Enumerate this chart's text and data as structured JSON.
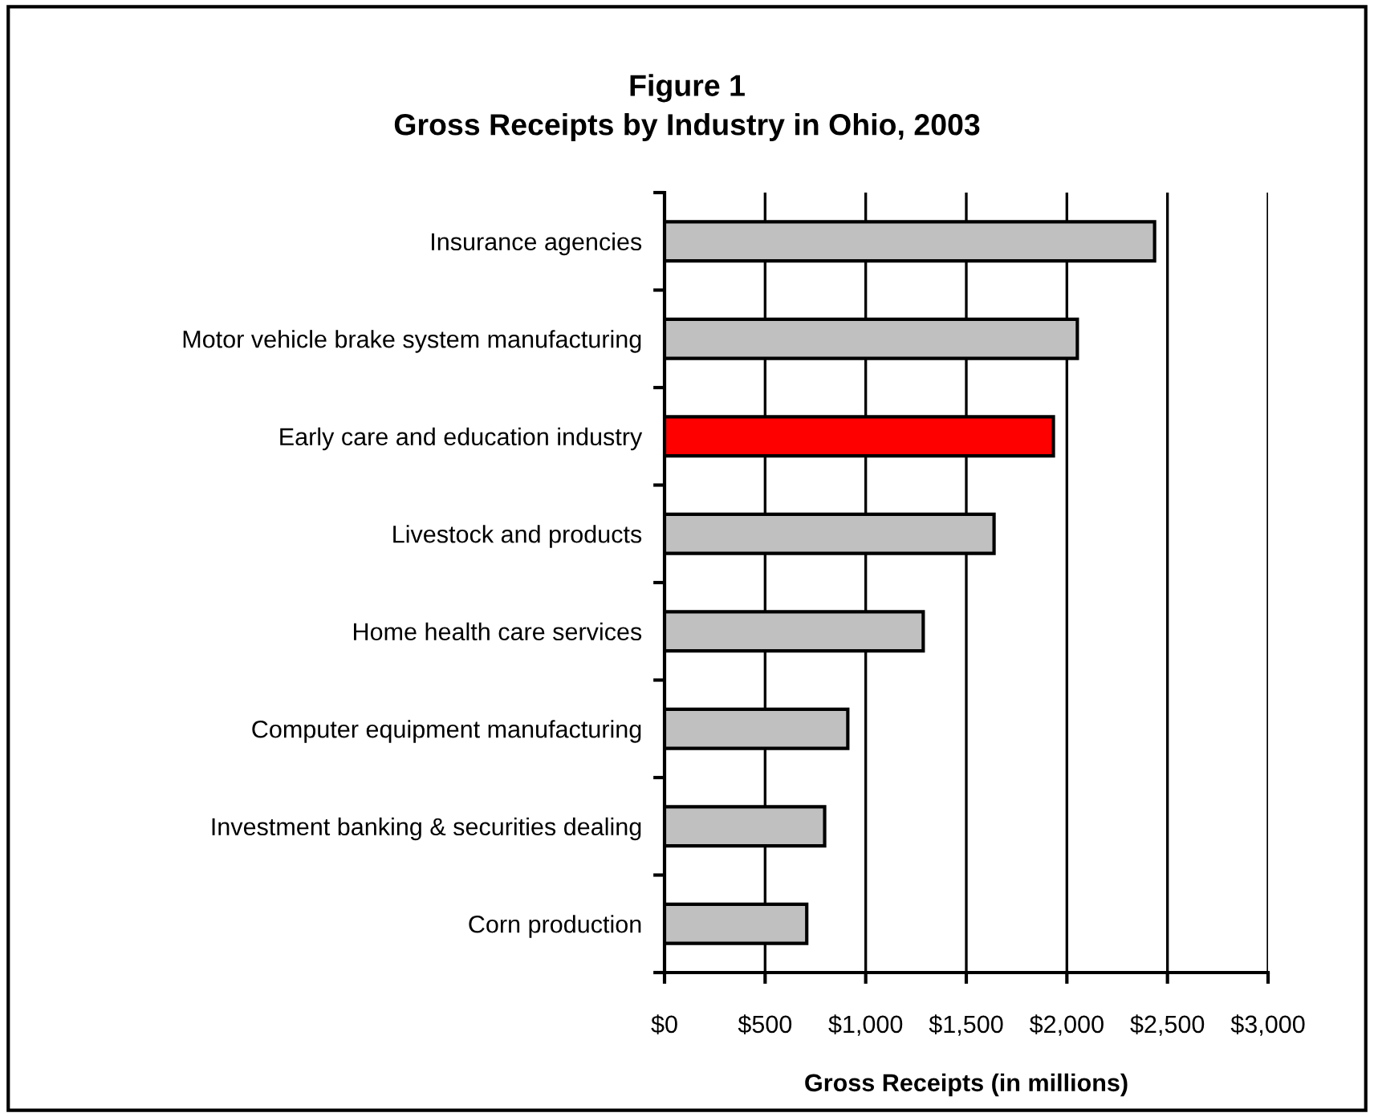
{
  "chart_data": {
    "type": "bar",
    "orientation": "horizontal",
    "title": "Figure 1\nGross Receipts by Industry in Ohio, 2003",
    "xlabel": "Gross Receipts (in millions)",
    "categories": [
      "Insurance agencies",
      "Motor vehicle brake system manufacturing",
      "Early care and education industry",
      "Livestock and products",
      "Home health care services",
      "Computer equipment manufacturing",
      "Investment banking & securities dealing",
      "Corn production"
    ],
    "values": [
      2436,
      2052,
      1933,
      1638,
      1286,
      911,
      796,
      707
    ],
    "colors": [
      "#c0c0c0",
      "#c0c0c0",
      "#ff0000",
      "#c0c0c0",
      "#c0c0c0",
      "#c0c0c0",
      "#c0c0c0",
      "#c0c0c0"
    ],
    "xlim": [
      0,
      3000
    ],
    "xticks": [
      {
        "value": 0,
        "label": "$0"
      },
      {
        "value": 500,
        "label": "$500"
      },
      {
        "value": 1000,
        "label": "$1,000"
      },
      {
        "value": 1500,
        "label": "$1,500"
      },
      {
        "value": 2000,
        "label": "$2,000"
      },
      {
        "value": 2500,
        "label": "$2,500"
      },
      {
        "value": 3000,
        "label": "$3,000"
      }
    ],
    "grid": "x",
    "legend": false
  }
}
